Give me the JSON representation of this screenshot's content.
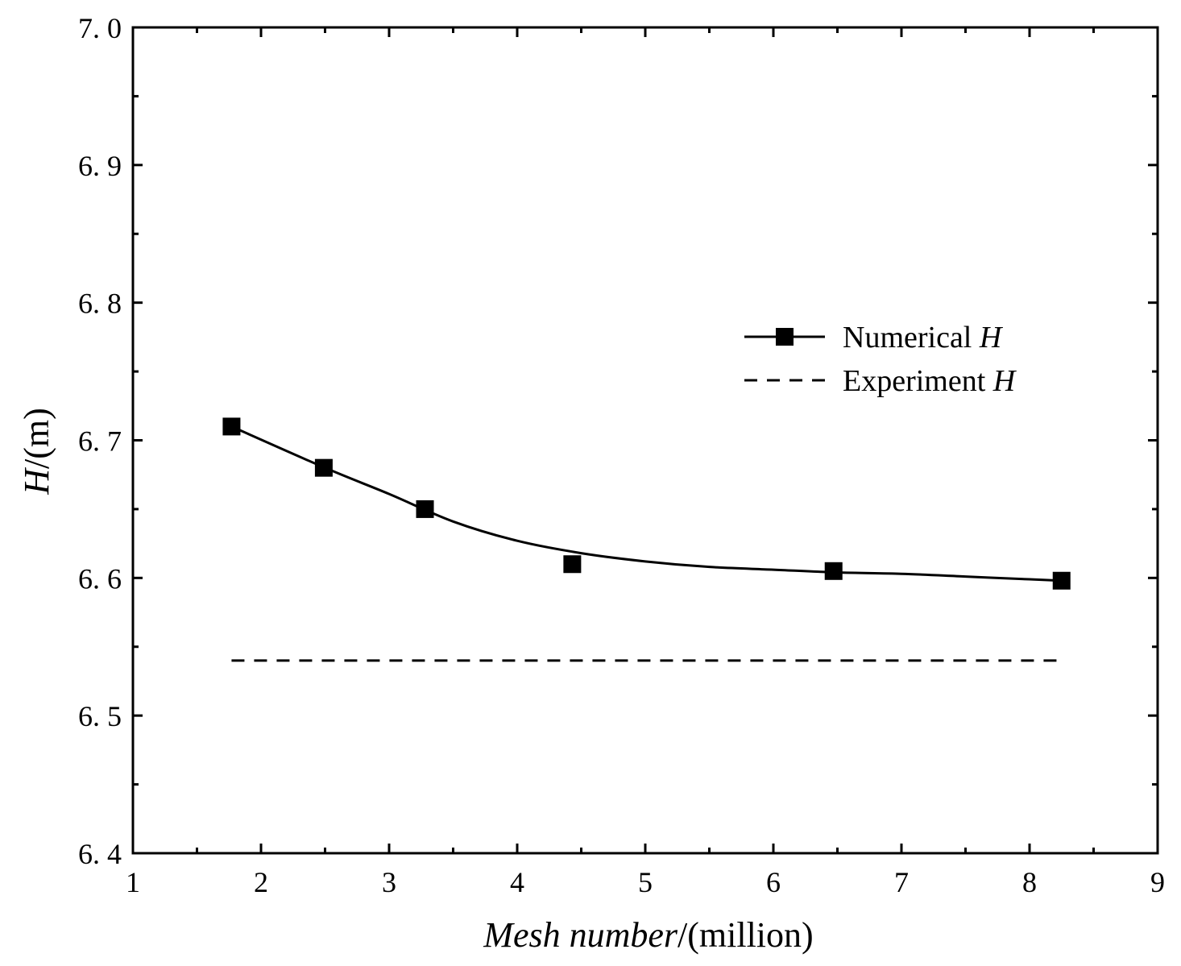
{
  "chart_data": {
    "type": "line",
    "title": "",
    "xlabel": {
      "italic": "Mesh number",
      "normal": "/(million)"
    },
    "ylabel": {
      "italic": "H",
      "normal": "/(m)"
    },
    "xlim": [
      1,
      9
    ],
    "ylim": [
      6.4,
      7.0
    ],
    "x_ticks": [
      1,
      2,
      3,
      4,
      5,
      6,
      7,
      8,
      9
    ],
    "x_tick_labels": [
      "1",
      "2",
      "3",
      "4",
      "5",
      "6",
      "7",
      "8",
      "9"
    ],
    "y_ticks": [
      6.4,
      6.5,
      6.6,
      6.7,
      6.8,
      6.9,
      7.0
    ],
    "y_tick_labels": [
      "6. 4",
      "6. 5",
      "6. 6",
      "6. 7",
      "6. 8",
      "6. 9",
      "7. 0"
    ],
    "grid": false,
    "legend_position": "middle-right",
    "series": [
      {
        "name": "Numerical H",
        "label_normal": "Numerical ",
        "label_italic": "H",
        "style": "solid-line-square-markers",
        "x": [
          1.77,
          2.49,
          3.28,
          4.43,
          6.47,
          8.25
        ],
        "y": [
          6.71,
          6.68,
          6.65,
          6.61,
          6.605,
          6.598
        ],
        "curve_x": [
          1.77,
          2.5,
          3.0,
          3.5,
          4.0,
          4.5,
          5.0,
          5.5,
          6.0,
          6.5,
          7.0,
          7.5,
          8.0,
          8.25
        ],
        "curve_y": [
          6.71,
          6.68,
          6.661,
          6.641,
          6.627,
          6.618,
          6.612,
          6.608,
          6.606,
          6.604,
          6.603,
          6.601,
          6.599,
          6.598
        ]
      },
      {
        "name": "Experiment H",
        "label_normal": "Experiment ",
        "label_italic": "H",
        "style": "dashed-line",
        "x": [
          1.77,
          8.25
        ],
        "y": [
          6.54,
          6.54
        ]
      }
    ]
  }
}
